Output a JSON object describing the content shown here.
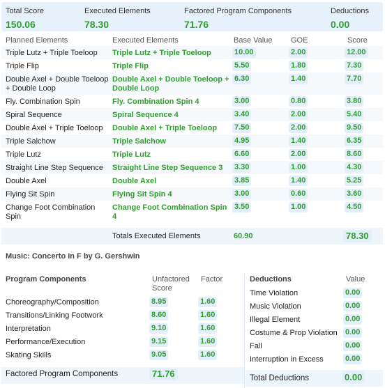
{
  "summary": {
    "total_score_label": "Total Score",
    "total_score": "150.06",
    "executed_label": "Executed Elements",
    "executed": "78.30",
    "factored_label": "Factored Program Components",
    "factored": "71.76",
    "deductions_label": "Deductions",
    "deductions": "0.00"
  },
  "elements_header": {
    "planned": "Planned Elements",
    "executed": "Executed Elements",
    "base": "Base Value",
    "goe": "GOE",
    "score": "Score"
  },
  "elements": [
    {
      "planned": "Triple Lutz + Triple Toeloop",
      "executed": "Triple Lutz + Triple Toeloop",
      "base": "10.00",
      "goe": "2.00",
      "score": "12.00"
    },
    {
      "planned": "Triple Flip",
      "executed": "Triple Flip",
      "base": "5.50",
      "goe": "1.80",
      "score": "7.30"
    },
    {
      "planned": "Double Axel + Double Toeloop + Double Loop",
      "executed": "Double Axel + Double Toeloop + Double Loop",
      "base": "6.30",
      "goe": "1.40",
      "score": "7.70"
    },
    {
      "planned": "Fly. Combination Spin",
      "executed": "Fly. Combination Spin 4",
      "base": "3.00",
      "goe": "0.80",
      "score": "3.80"
    },
    {
      "planned": "Spiral Sequence",
      "executed": "Spiral Sequence 4",
      "base": "3.40",
      "goe": "2.00",
      "score": "5.40"
    },
    {
      "planned": "Double Axel + Triple Toeloop",
      "executed": "Double Axel + Triple Toeloop",
      "base": "7.50",
      "goe": "2.00",
      "score": "9.50"
    },
    {
      "planned": "Triple Salchow",
      "executed": "Triple Salchow",
      "base": "4.95",
      "goe": "1.40",
      "score": "6.35"
    },
    {
      "planned": "Triple Lutz",
      "executed": "Triple Lutz",
      "base": "6.60",
      "goe": "2.00",
      "score": "8.60"
    },
    {
      "planned": "Straight Line Step Sequence",
      "executed": "Straight Line Step Sequence 3",
      "base": "3.30",
      "goe": "1.00",
      "score": "4.30"
    },
    {
      "planned": "Double Axel",
      "executed": "Double Axel",
      "base": "3.85",
      "goe": "1.40",
      "score": "5.25"
    },
    {
      "planned": "Flying Sit Spin",
      "executed": "Flying Sit Spin 4",
      "base": "3.00",
      "goe": "0.60",
      "score": "3.60"
    },
    {
      "planned": "Change Foot Combination Spin",
      "executed": "Change Foot Combination Spin 4",
      "base": "3.50",
      "goe": "1.00",
      "score": "4.50"
    }
  ],
  "elements_total": {
    "label": "Totals Executed Elements",
    "base": "60.90",
    "score": "78.30"
  },
  "music": "Music:  Concerto in F by G. Gershwin",
  "components_header": {
    "title": "Program Components",
    "unfactored": "Unfactored Score",
    "factor": "Factor"
  },
  "components": [
    {
      "name": "Choreography/Composition",
      "score": "8.95",
      "factor": "1.60"
    },
    {
      "name": "Transitions/Linking Footwork",
      "score": "8.60",
      "factor": "1.60"
    },
    {
      "name": "Interpretation",
      "score": "9.10",
      "factor": "1.60"
    },
    {
      "name": "Performance/Execution",
      "score": "9.15",
      "factor": "1.60"
    },
    {
      "name": "Skating Skills",
      "score": "9.05",
      "factor": "1.60"
    }
  ],
  "components_total": {
    "label": "Factored Program Components",
    "value": "71.76"
  },
  "deductions_header": {
    "title": "Deductions",
    "value": "Value"
  },
  "deductions": [
    {
      "name": "Time Violation",
      "value": "0.00"
    },
    {
      "name": "Music Violation",
      "value": "0.00"
    },
    {
      "name": "Illegal Element",
      "value": "0.00"
    },
    {
      "name": "Costume & Prop Violation",
      "value": "0.00"
    },
    {
      "name": "Fall",
      "value": "0.00"
    },
    {
      "name": "Interruption in Excess",
      "value": "0.00"
    }
  ],
  "deductions_total": {
    "label": "Total Deductions",
    "value": "0.00"
  }
}
